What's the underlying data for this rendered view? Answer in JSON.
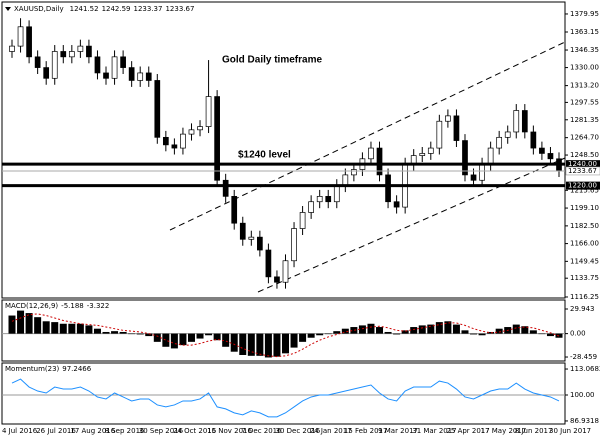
{
  "chart_data": [
    {
      "type": "candlestick",
      "title": "XAUUSD,Daily",
      "readout": [
        1241.52,
        1242.59,
        1233.37,
        1233.67
      ],
      "annotations": [
        "Gold Daily timeframe",
        "$1240 level"
      ],
      "categories": [
        "4 Jul 2016",
        null,
        null,
        null,
        "26 Jul 2016",
        null,
        null,
        null,
        "17 Aug 2016",
        null,
        null,
        null,
        "8 Sep 2016",
        null,
        null,
        null,
        "30 Sep 2016",
        null,
        null,
        null,
        "24 Oct 2016",
        null,
        null,
        null,
        "15 Nov 2016",
        null,
        null,
        null,
        "7 Dec 2016",
        null,
        null,
        null,
        "30 Dec 2016",
        null,
        null,
        null,
        "24 Jan 2017",
        null,
        null,
        null,
        "15 Feb 2017",
        null,
        null,
        null,
        "9 Mar 2017",
        null,
        null,
        null,
        "31 Mar 2017",
        null,
        null,
        null,
        "25 Apr 2017",
        null,
        null,
        null,
        "17 May 2017",
        null,
        null,
        null,
        "8 Jun 2017",
        null,
        null,
        null,
        "30 Jun 2017"
      ],
      "open": [
        1345,
        1350,
        1368,
        1340,
        1330,
        1320,
        1345,
        1340,
        1345,
        1350,
        1340,
        1325,
        1320,
        1340,
        1330,
        1318,
        1325,
        1318,
        1265,
        1258,
        1255,
        1268,
        1272,
        1275,
        1303,
        1225,
        1210,
        1185,
        1170,
        1172,
        1160,
        1135,
        1130,
        1150,
        1180,
        1195,
        1205,
        1210,
        1205,
        1220,
        1230,
        1235,
        1245,
        1255,
        1230,
        1205,
        1200,
        1240,
        1248,
        1250,
        1255,
        1280,
        1285,
        1262,
        1230,
        1225,
        1240,
        1255,
        1265,
        1270,
        1290,
        1270,
        1255,
        1250,
        1245
      ],
      "high": [
        1356,
        1376,
        1374,
        1346,
        1336,
        1351,
        1351,
        1351,
        1356,
        1356,
        1346,
        1331,
        1346,
        1346,
        1336,
        1331,
        1331,
        1324,
        1271,
        1264,
        1274,
        1278,
        1281,
        1337,
        1309,
        1231,
        1216,
        1191,
        1178,
        1178,
        1166,
        1141,
        1156,
        1186,
        1201,
        1211,
        1216,
        1216,
        1226,
        1236,
        1241,
        1251,
        1261,
        1261,
        1236,
        1211,
        1246,
        1254,
        1256,
        1261,
        1286,
        1291,
        1291,
        1268,
        1236,
        1246,
        1261,
        1271,
        1276,
        1296,
        1296,
        1276,
        1261,
        1256,
        1251
      ],
      "low": [
        1339,
        1344,
        1334,
        1324,
        1314,
        1314,
        1334,
        1334,
        1339,
        1334,
        1319,
        1314,
        1314,
        1324,
        1312,
        1312,
        1312,
        1259,
        1252,
        1249,
        1249,
        1262,
        1266,
        1269,
        1219,
        1204,
        1179,
        1164,
        1164,
        1154,
        1129,
        1124,
        1124,
        1144,
        1174,
        1189,
        1199,
        1199,
        1199,
        1214,
        1224,
        1229,
        1239,
        1224,
        1199,
        1194,
        1194,
        1234,
        1242,
        1244,
        1249,
        1274,
        1256,
        1224,
        1219,
        1219,
        1234,
        1249,
        1259,
        1264,
        1264,
        1249,
        1244,
        1239,
        1228
      ],
      "close": [
        1350,
        1368,
        1340,
        1330,
        1320,
        1345,
        1340,
        1345,
        1350,
        1340,
        1325,
        1320,
        1340,
        1330,
        1318,
        1325,
        1318,
        1265,
        1258,
        1255,
        1268,
        1272,
        1275,
        1303,
        1225,
        1210,
        1185,
        1170,
        1172,
        1160,
        1135,
        1130,
        1150,
        1180,
        1195,
        1205,
        1210,
        1205,
        1220,
        1230,
        1235,
        1245,
        1255,
        1230,
        1205,
        1200,
        1240,
        1248,
        1250,
        1255,
        1280,
        1285,
        1262,
        1230,
        1225,
        1240,
        1255,
        1265,
        1270,
        1290,
        1270,
        1255,
        1250,
        1245,
        1234
      ],
      "ylim": [
        1115.3,
        1391.1
      ],
      "yticks": [
        1379.95,
        1363.15,
        1346.35,
        {
          "value": 1330,
          "label": "1330.00"
        },
        {
          "value": 1313.2,
          "label": "1313.20"
        },
        1297.55,
        1281.35,
        {
          "value": 1264.7,
          "label": "1264.70"
        },
        {
          "value": 1248.5,
          "label": "1248.50"
        },
        1215.65,
        {
          "value": 1199.1,
          "label": "1199.10"
        },
        {
          "value": 1182.5,
          "label": "1182.50"
        },
        {
          "value": 1166,
          "label": "1166.00"
        },
        1149.45,
        1133.75,
        1116.25
      ],
      "levels": [
        {
          "value": 1240,
          "label": "1240.00"
        },
        {
          "value": 1220,
          "label": "1220.00"
        }
      ],
      "last_price": 1233.67
    },
    {
      "type": "macd",
      "title": "MACD(12,26,9)",
      "readout": [
        -5.188,
        -3.322
      ],
      "values": [
        22,
        28,
        25,
        20,
        15,
        14,
        12,
        12,
        12,
        10,
        6,
        2,
        3,
        2,
        0,
        -1,
        -3,
        -10,
        -16,
        -18,
        -14,
        -10,
        -6,
        -2,
        -8,
        -16,
        -22,
        -26,
        -27,
        -27,
        -29,
        -28,
        -24,
        -17,
        -10,
        -5,
        -2,
        0,
        3,
        6,
        8,
        10,
        12,
        8,
        2,
        -1,
        4,
        8,
        10,
        11,
        14,
        15,
        11,
        4,
        -1,
        -2,
        2,
        6,
        8,
        11,
        9,
        4,
        0,
        -3,
        -5
      ],
      "signal": [
        15,
        19,
        23,
        24,
        22,
        19,
        16,
        14,
        12,
        11,
        10,
        8,
        6,
        4,
        3,
        2,
        0,
        -3,
        -8,
        -12,
        -14,
        -14,
        -12,
        -9,
        -7,
        -9,
        -13,
        -18,
        -22,
        -25,
        -27,
        -28,
        -27,
        -24,
        -19,
        -13,
        -8,
        -4,
        -1,
        2,
        4,
        6,
        8,
        9,
        7,
        4,
        3,
        5,
        7,
        9,
        11,
        13,
        13,
        10,
        6,
        3,
        1,
        2,
        4,
        7,
        8,
        7,
        4,
        1,
        -3
      ],
      "ylim": [
        -33.3,
        40.9
      ],
      "yticks": [
        29.943,
        {
          "value": 0,
          "label": "0.00"
        },
        -28.459
      ]
    },
    {
      "type": "line",
      "title": "Momentum(23)",
      "readout": [
        97.2466
      ],
      "color": "#1e90ff",
      "values": [
        106,
        108,
        104,
        102,
        101,
        104,
        103,
        103,
        104,
        102,
        99,
        98,
        101,
        99,
        97,
        98,
        98,
        95,
        94,
        95,
        97,
        97,
        98,
        101,
        94,
        93,
        91,
        90,
        92,
        91,
        89,
        89,
        91,
        94,
        97,
        99,
        100,
        100,
        101,
        102,
        103,
        104,
        105,
        101,
        98,
        97,
        102,
        104,
        104,
        104,
        107,
        106,
        103,
        99,
        98,
        100,
        102,
        103,
        103,
        106,
        103,
        101,
        100,
        99,
        97
      ],
      "ylim": [
        85.4,
        116.1
      ],
      "yticks": [
        113.0682,
        {
          "value": 100,
          "label": "100.00"
        },
        86.9318
      ]
    }
  ]
}
